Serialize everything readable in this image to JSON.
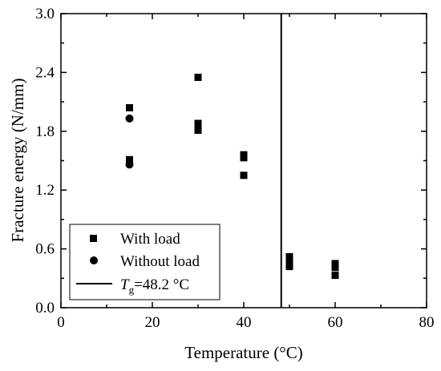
{
  "chart_data": {
    "type": "scatter",
    "title": "",
    "xlabel": "Temperature (°C)",
    "ylabel": "Fracture energy (N/mm)",
    "xlim": [
      0,
      80
    ],
    "ylim": [
      0.0,
      3.0
    ],
    "x_ticks": [
      "0",
      "20",
      "40",
      "60",
      "80"
    ],
    "y_ticks": [
      "0.0",
      "0.6",
      "1.2",
      "1.8",
      "2.4",
      "3.0"
    ],
    "grid": false,
    "legend_position": "bottom-left",
    "series": [
      {
        "name": "With load",
        "marker": "square",
        "color": "#000000",
        "points": [
          [
            15,
            2.04
          ],
          [
            15,
            1.51
          ],
          [
            15,
            1.49
          ],
          [
            30,
            2.35
          ],
          [
            30,
            1.88
          ],
          [
            30,
            1.81
          ],
          [
            40,
            1.56
          ],
          [
            40,
            1.53
          ],
          [
            40,
            1.35
          ],
          [
            50,
            0.52
          ],
          [
            50,
            0.47
          ],
          [
            50,
            0.42
          ],
          [
            60,
            0.45
          ],
          [
            60,
            0.41
          ],
          [
            60,
            0.33
          ]
        ]
      },
      {
        "name": "Without load",
        "marker": "circle",
        "color": "#000000",
        "points": [
          [
            15,
            1.93
          ],
          [
            15,
            1.46
          ]
        ]
      }
    ],
    "vertical_line": {
      "x": 48.2,
      "color": "#000000",
      "label_symbol": "T",
      "label_subscript": "g",
      "label_value": "=48.2 °C"
    }
  }
}
